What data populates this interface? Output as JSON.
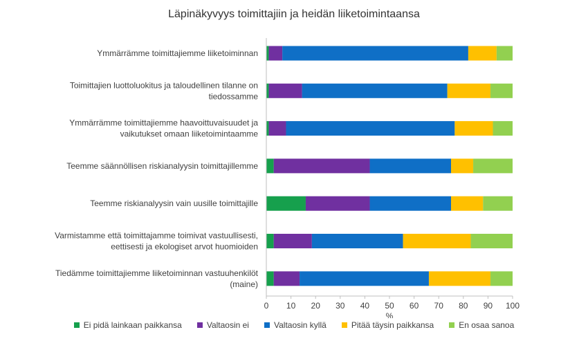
{
  "chart_data": {
    "type": "bar",
    "orientation": "horizontal",
    "stacked": true,
    "title": "Läpinäkyvyys toimittajiin ja heidän liiketoimintaansa",
    "xlabel": "%",
    "xlim": [
      0,
      100
    ],
    "xticks": [
      "0",
      "10",
      "20",
      "30",
      "40",
      "50",
      "60",
      "70",
      "80",
      "90",
      "100"
    ],
    "legend_position": "bottom",
    "categories": [
      [
        "Ymmärrämme toimittajiemme liiketoiminnan"
      ],
      [
        "Toimittajien luottoluokitus ja taloudellinen tilanne on",
        "tiedossamme"
      ],
      [
        "Ymmärrämme toimittajiemme haavoittuvaisuudet ja",
        "vaikutukset omaan liiketoimintaamme"
      ],
      [
        "Teemme säännöllisen riskianalyysin toimittajillemme"
      ],
      [
        "Teemme riskianalyysin vain uusille toimittajille"
      ],
      [
        "Varmistamme että toimittajamme toimivat vastuullisesti,",
        "eettisesti ja ekologiset arvot huomioiden"
      ],
      [
        "Tiedämme toimittajiemme liiketoiminnan vastuuhenkilöt",
        "(maine)"
      ]
    ],
    "series": [
      {
        "name": "Ei pidä lainkaan paikkansa",
        "color": "#16a04d",
        "values": [
          1,
          1,
          1,
          3,
          16,
          3,
          3
        ]
      },
      {
        "name": "Valtaosin ei",
        "color": "#7030a0",
        "values": [
          5.5,
          13.5,
          7,
          39,
          26,
          15.5,
          10.5
        ]
      },
      {
        "name": "Valtaosin kyllä",
        "color": "#0f6fc6",
        "values": [
          75.5,
          59,
          68.5,
          33,
          33,
          37,
          52.5
        ]
      },
      {
        "name": "Pitää täysin paikkansa",
        "color": "#ffc000",
        "values": [
          11.5,
          17.5,
          15.5,
          9,
          13,
          27.5,
          25
        ]
      },
      {
        "name": "En osaa sanoa",
        "color": "#92d050",
        "values": [
          6.5,
          9,
          8,
          16,
          12,
          17,
          9
        ]
      }
    ]
  }
}
